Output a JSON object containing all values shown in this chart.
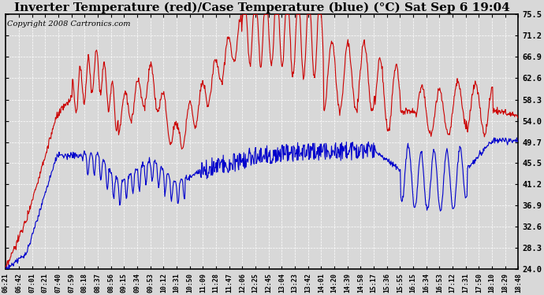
{
  "title": "Inverter Temperature (red)/Case Temperature (blue) (°C) Sat Sep 6 19:04",
  "copyright": "Copyright 2008 Cartronics.com",
  "yticks": [
    24.0,
    28.3,
    32.6,
    36.9,
    41.2,
    45.5,
    49.7,
    54.0,
    58.3,
    62.6,
    66.9,
    71.2,
    75.5
  ],
  "ymin": 24.0,
  "ymax": 75.5,
  "xtick_labels": [
    "06:21",
    "06:42",
    "07:01",
    "07:21",
    "07:40",
    "07:59",
    "08:18",
    "08:37",
    "08:56",
    "09:15",
    "09:34",
    "09:53",
    "10:12",
    "10:31",
    "10:50",
    "11:09",
    "11:28",
    "11:47",
    "12:06",
    "12:25",
    "12:45",
    "13:04",
    "13:23",
    "13:42",
    "14:01",
    "14:20",
    "14:39",
    "14:58",
    "15:17",
    "15:36",
    "15:55",
    "16:15",
    "16:34",
    "16:53",
    "17:12",
    "17:31",
    "17:50",
    "18:10",
    "18:29",
    "18:48"
  ],
  "red_color": "#cc0000",
  "blue_color": "#0000cc",
  "bg_color": "#d8d8d8",
  "plot_bg": "#d8d8d8",
  "grid_color": "#ffffff",
  "title_fontsize": 11,
  "copyright_fontsize": 7,
  "figwidth": 6.9,
  "figheight": 3.75,
  "dpi": 100
}
